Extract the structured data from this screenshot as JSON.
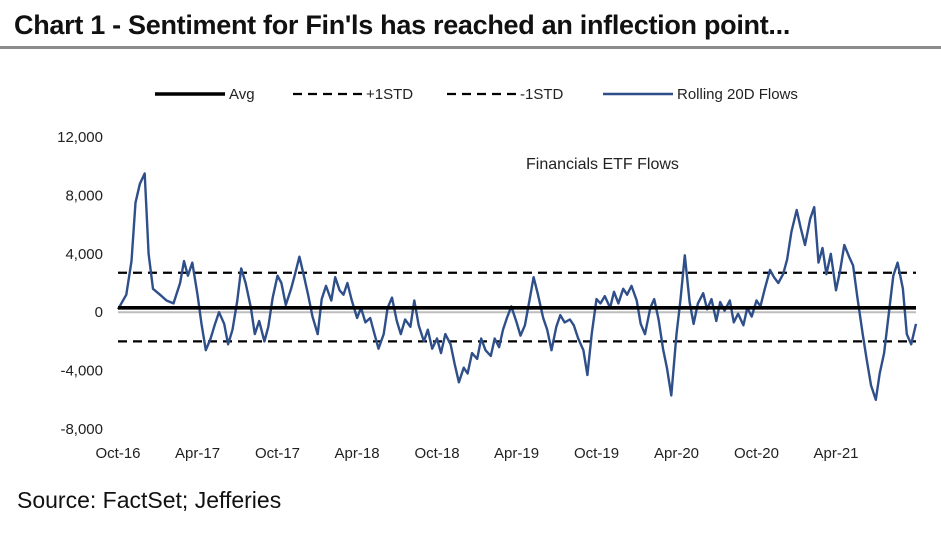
{
  "title": "Chart 1 - Sentiment for Fin'ls has reached an inflection point...",
  "source": "Source: FactSet; Jefferies",
  "chart_data": {
    "type": "line",
    "annotation": "Financials ETF Flows",
    "legend_position": "top",
    "legend": [
      {
        "label": "Avg",
        "style": "solid-thick",
        "color": "#000000"
      },
      {
        "label": "+1STD",
        "style": "dashed",
        "color": "#000000"
      },
      {
        "label": "-1STD",
        "style": "dashed",
        "color": "#000000"
      },
      {
        "label": "Rolling 20D Flows",
        "style": "solid",
        "color": "#2f4f8a"
      }
    ],
    "ylim": [
      -8000,
      12000
    ],
    "yticks": [
      12000,
      8000,
      4000,
      0,
      -4000,
      -8000
    ],
    "ytick_labels": [
      "12,000",
      "8,000",
      "4,000",
      "0",
      "-4,000",
      "-8,000"
    ],
    "x_range": [
      "2016-10-01",
      "2021-10-01"
    ],
    "xticks": [
      "2016-10",
      "2017-04",
      "2017-10",
      "2018-04",
      "2018-10",
      "2019-04",
      "2019-10",
      "2020-04",
      "2020-10",
      "2021-04"
    ],
    "xtick_labels": [
      "Oct-16",
      "Apr-17",
      "Oct-17",
      "Apr-18",
      "Oct-18",
      "Apr-19",
      "Oct-19",
      "Apr-20",
      "Oct-20",
      "Apr-21"
    ],
    "grid": false,
    "reference_lines": {
      "avg": 300,
      "plus_1std": 2700,
      "minus_1std": -2000
    },
    "series": [
      {
        "name": "Rolling 20D Flows",
        "points": [
          [
            "2016-10-01",
            200
          ],
          [
            "2016-10-20",
            1200
          ],
          [
            "2016-11-01",
            3500
          ],
          [
            "2016-11-10",
            7500
          ],
          [
            "2016-11-20",
            8800
          ],
          [
            "2016-12-01",
            9500
          ],
          [
            "2016-12-10",
            4000
          ],
          [
            "2016-12-20",
            1600
          ],
          [
            "2017-01-05",
            1200
          ],
          [
            "2017-01-20",
            800
          ],
          [
            "2017-02-05",
            600
          ],
          [
            "2017-02-20",
            2000
          ],
          [
            "2017-03-01",
            3500
          ],
          [
            "2017-03-10",
            2500
          ],
          [
            "2017-03-20",
            3400
          ],
          [
            "2017-04-01",
            1200
          ],
          [
            "2017-04-10",
            -800
          ],
          [
            "2017-04-20",
            -2600
          ],
          [
            "2017-05-01",
            -1800
          ],
          [
            "2017-05-10",
            -900
          ],
          [
            "2017-05-20",
            0
          ],
          [
            "2017-06-01",
            -800
          ],
          [
            "2017-06-10",
            -2200
          ],
          [
            "2017-06-20",
            -1200
          ],
          [
            "2017-07-01",
            800
          ],
          [
            "2017-07-10",
            3000
          ],
          [
            "2017-07-20",
            2000
          ],
          [
            "2017-08-01",
            300
          ],
          [
            "2017-08-10",
            -1500
          ],
          [
            "2017-08-20",
            -600
          ],
          [
            "2017-09-01",
            -2000
          ],
          [
            "2017-09-10",
            -1000
          ],
          [
            "2017-09-20",
            1000
          ],
          [
            "2017-10-01",
            2500
          ],
          [
            "2017-10-10",
            2000
          ],
          [
            "2017-10-20",
            500
          ],
          [
            "2017-11-01",
            1600
          ],
          [
            "2017-11-10",
            2600
          ],
          [
            "2017-11-20",
            3800
          ],
          [
            "2017-12-01",
            2400
          ],
          [
            "2017-12-10",
            1200
          ],
          [
            "2017-12-20",
            -300
          ],
          [
            "2018-01-01",
            -1500
          ],
          [
            "2018-01-10",
            900
          ],
          [
            "2018-01-20",
            1800
          ],
          [
            "2018-02-01",
            800
          ],
          [
            "2018-02-10",
            2400
          ],
          [
            "2018-02-20",
            1500
          ],
          [
            "2018-03-01",
            1200
          ],
          [
            "2018-03-10",
            2000
          ],
          [
            "2018-03-20",
            800
          ],
          [
            "2018-04-01",
            -400
          ],
          [
            "2018-04-10",
            300
          ],
          [
            "2018-04-20",
            -700
          ],
          [
            "2018-05-01",
            -400
          ],
          [
            "2018-05-10",
            -1400
          ],
          [
            "2018-05-20",
            -2500
          ],
          [
            "2018-06-01",
            -1500
          ],
          [
            "2018-06-10",
            300
          ],
          [
            "2018-06-20",
            1000
          ],
          [
            "2018-07-01",
            -600
          ],
          [
            "2018-07-10",
            -1500
          ],
          [
            "2018-07-20",
            -500
          ],
          [
            "2018-08-01",
            -1000
          ],
          [
            "2018-08-10",
            800
          ],
          [
            "2018-08-20",
            -900
          ],
          [
            "2018-09-01",
            -2000
          ],
          [
            "2018-09-10",
            -1200
          ],
          [
            "2018-09-20",
            -2500
          ],
          [
            "2018-10-01",
            -1800
          ],
          [
            "2018-10-10",
            -2800
          ],
          [
            "2018-10-20",
            -1500
          ],
          [
            "2018-11-01",
            -2200
          ],
          [
            "2018-11-10",
            -3500
          ],
          [
            "2018-11-20",
            -4800
          ],
          [
            "2018-12-01",
            -3800
          ],
          [
            "2018-12-10",
            -4200
          ],
          [
            "2018-12-20",
            -2800
          ],
          [
            "2019-01-01",
            -3200
          ],
          [
            "2019-01-10",
            -1800
          ],
          [
            "2019-01-20",
            -2600
          ],
          [
            "2019-02-01",
            -3000
          ],
          [
            "2019-02-10",
            -1800
          ],
          [
            "2019-02-20",
            -2400
          ],
          [
            "2019-03-01",
            -1200
          ],
          [
            "2019-03-10",
            -400
          ],
          [
            "2019-03-20",
            400
          ],
          [
            "2019-04-01",
            -700
          ],
          [
            "2019-04-10",
            -1600
          ],
          [
            "2019-04-20",
            -900
          ],
          [
            "2019-05-01",
            900
          ],
          [
            "2019-05-10",
            2400
          ],
          [
            "2019-05-20",
            1200
          ],
          [
            "2019-06-01",
            -400
          ],
          [
            "2019-06-10",
            -1200
          ],
          [
            "2019-06-20",
            -2600
          ],
          [
            "2019-07-01",
            -1000
          ],
          [
            "2019-07-10",
            -200
          ],
          [
            "2019-07-20",
            -700
          ],
          [
            "2019-08-01",
            -500
          ],
          [
            "2019-08-10",
            -900
          ],
          [
            "2019-08-20",
            -1800
          ],
          [
            "2019-09-01",
            -2600
          ],
          [
            "2019-09-10",
            -4300
          ],
          [
            "2019-09-20",
            -1500
          ],
          [
            "2019-10-01",
            900
          ],
          [
            "2019-10-10",
            600
          ],
          [
            "2019-10-20",
            1100
          ],
          [
            "2019-11-01",
            300
          ],
          [
            "2019-11-10",
            1400
          ],
          [
            "2019-11-20",
            600
          ],
          [
            "2019-12-01",
            1600
          ],
          [
            "2019-12-10",
            1200
          ],
          [
            "2019-12-20",
            1800
          ],
          [
            "2020-01-01",
            800
          ],
          [
            "2020-01-10",
            -800
          ],
          [
            "2020-01-20",
            -1500
          ],
          [
            "2020-02-01",
            300
          ],
          [
            "2020-02-10",
            900
          ],
          [
            "2020-02-20",
            -500
          ],
          [
            "2020-03-01",
            -2500
          ],
          [
            "2020-03-10",
            -3800
          ],
          [
            "2020-03-20",
            -5700
          ],
          [
            "2020-04-01",
            -1500
          ],
          [
            "2020-04-10",
            800
          ],
          [
            "2020-04-20",
            3900
          ],
          [
            "2020-05-01",
            700
          ],
          [
            "2020-05-10",
            -800
          ],
          [
            "2020-05-20",
            600
          ],
          [
            "2020-06-01",
            1300
          ],
          [
            "2020-06-10",
            200
          ],
          [
            "2020-06-20",
            900
          ],
          [
            "2020-07-01",
            -600
          ],
          [
            "2020-07-10",
            700
          ],
          [
            "2020-07-20",
            100
          ],
          [
            "2020-08-01",
            800
          ],
          [
            "2020-08-10",
            -700
          ],
          [
            "2020-08-20",
            -100
          ],
          [
            "2020-09-01",
            -900
          ],
          [
            "2020-09-10",
            300
          ],
          [
            "2020-09-20",
            -300
          ],
          [
            "2020-10-01",
            800
          ],
          [
            "2020-10-10",
            400
          ],
          [
            "2020-10-20",
            1600
          ],
          [
            "2020-11-01",
            2900
          ],
          [
            "2020-11-10",
            2400
          ],
          [
            "2020-11-20",
            2000
          ],
          [
            "2020-12-01",
            2600
          ],
          [
            "2020-12-10",
            3600
          ],
          [
            "2020-12-20",
            5500
          ],
          [
            "2021-01-01",
            7000
          ],
          [
            "2021-01-10",
            5800
          ],
          [
            "2021-01-20",
            4600
          ],
          [
            "2021-02-01",
            6400
          ],
          [
            "2021-02-10",
            7200
          ],
          [
            "2021-02-20",
            3400
          ],
          [
            "2021-03-01",
            4400
          ],
          [
            "2021-03-10",
            2600
          ],
          [
            "2021-03-20",
            4000
          ],
          [
            "2021-04-01",
            1500
          ],
          [
            "2021-04-10",
            2800
          ],
          [
            "2021-04-20",
            4600
          ],
          [
            "2021-05-01",
            3800
          ],
          [
            "2021-05-10",
            3200
          ],
          [
            "2021-05-20",
            1000
          ],
          [
            "2021-06-01",
            -1500
          ],
          [
            "2021-06-10",
            -3200
          ],
          [
            "2021-06-20",
            -5000
          ],
          [
            "2021-07-01",
            -6000
          ],
          [
            "2021-07-10",
            -4200
          ],
          [
            "2021-07-20",
            -2800
          ],
          [
            "2021-08-01",
            200
          ],
          [
            "2021-08-10",
            2500
          ],
          [
            "2021-08-20",
            3400
          ],
          [
            "2021-09-01",
            1600
          ],
          [
            "2021-09-10",
            -1500
          ],
          [
            "2021-09-20",
            -2200
          ],
          [
            "2021-10-01",
            -800
          ]
        ]
      }
    ]
  }
}
